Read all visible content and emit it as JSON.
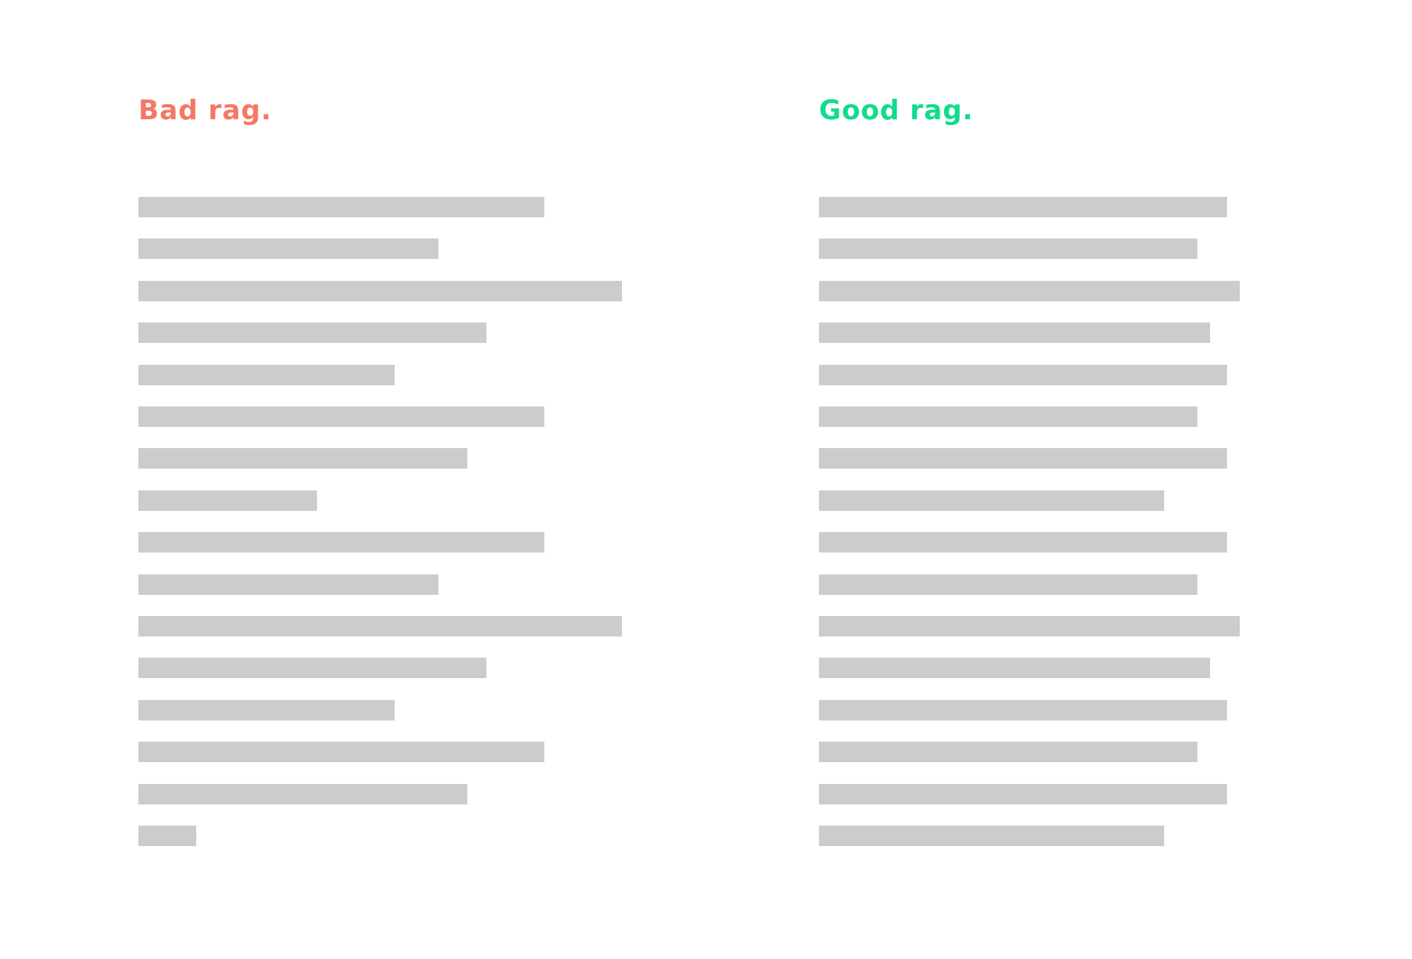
{
  "colors": {
    "bad": "#f47865",
    "good": "#11dc8d",
    "bar": "#cccccc",
    "background": "#ffffff"
  },
  "bad_rag": {
    "title": "Bad rag.",
    "line_lengths": [
      0.84,
      0.62,
      1.0,
      0.72,
      0.53,
      0.84,
      0.68,
      0.37,
      0.84,
      0.62,
      1.0,
      0.72,
      0.53,
      0.84,
      0.68,
      0.12
    ]
  },
  "good_rag": {
    "title": "Good rag.",
    "line_lengths": [
      0.97,
      0.9,
      1.0,
      0.93,
      0.97,
      0.9,
      0.97,
      0.82,
      0.97,
      0.9,
      1.0,
      0.93,
      0.97,
      0.9,
      0.97,
      0.82
    ]
  }
}
